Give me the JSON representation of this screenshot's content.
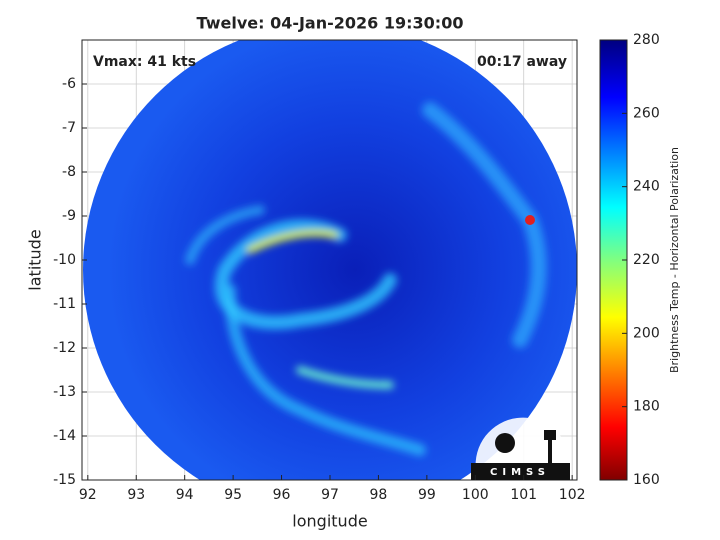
{
  "title": "Twelve: 04-Jan-2026 19:30:00",
  "annotations": {
    "vmax": "Vmax: 41 kts",
    "time_away": "00:17 away",
    "logo": "CIMSS"
  },
  "map": {
    "xlabel": "longitude",
    "ylabel": "latitude",
    "xlim": [
      91.88,
      102.1
    ],
    "ylim": [
      -15,
      -5
    ],
    "xticks": [
      92,
      93,
      94,
      95,
      96,
      97,
      98,
      99,
      100,
      101,
      102
    ],
    "yticks": [
      -6,
      -7,
      -8,
      -9,
      -10,
      -11,
      -12,
      -13,
      -14,
      -15
    ],
    "grid": true
  },
  "colorbar": {
    "label": "Brightness Temp - Horizontal Polarization",
    "clim": [
      160,
      280
    ],
    "ticks": [
      160,
      180,
      200,
      220,
      240,
      260,
      280
    ]
  }
}
